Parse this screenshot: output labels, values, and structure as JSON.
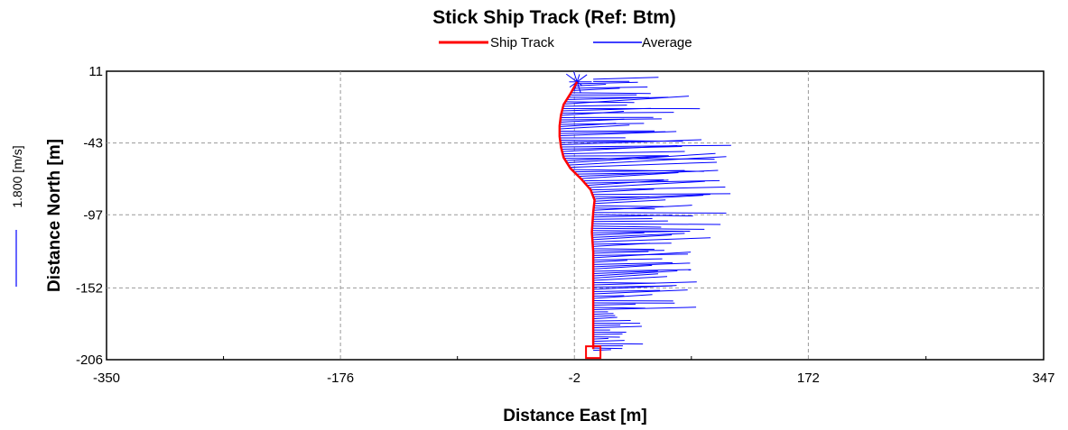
{
  "chart_data": {
    "type": "line",
    "title": "Stick Ship Track (Ref: Btm)",
    "xlabel": "Distance East [m]",
    "ylabel": "Distance North [m]",
    "xlim": [
      -350,
      347
    ],
    "ylim": [
      -206,
      11
    ],
    "xticks": [
      "-350",
      "-176",
      "-2",
      "172",
      "347"
    ],
    "yticks": [
      "11",
      "-43",
      "-97",
      "-152",
      "-206"
    ],
    "xtick_values": [
      -350,
      -176,
      -2,
      172,
      347
    ],
    "ytick_values": [
      11,
      -43,
      -97,
      -152,
      -206
    ],
    "grid": true,
    "legend": {
      "placement": "top-center",
      "entries": [
        "Ship Track",
        "Average"
      ]
    },
    "scale_label": "1.800 [m/s]",
    "series": [
      {
        "name": "Ship Track",
        "color": "#ff0000",
        "x": [
          0,
          -5,
          -10,
          -12,
          -13,
          -13,
          -12,
          -10,
          -5,
          3,
          10,
          13,
          12,
          11,
          12,
          12,
          12,
          12,
          12
        ],
        "y": [
          3,
          -6,
          -14,
          -22,
          -30,
          -38,
          -46,
          -54,
          -62,
          -70,
          -78,
          -86,
          -95,
          -110,
          -125,
          -140,
          -160,
          -180,
          -198
        ]
      }
    ],
    "average": {
      "name": "Average",
      "color": "#0000ff",
      "start_marker": "star",
      "start": [
        0,
        3
      ],
      "end_marker": "square",
      "end": [
        12,
        -200
      ]
    },
    "sticks_note": "Blue stick vectors are drawn from points along the ship track pointing mostly east with varying lengths."
  }
}
